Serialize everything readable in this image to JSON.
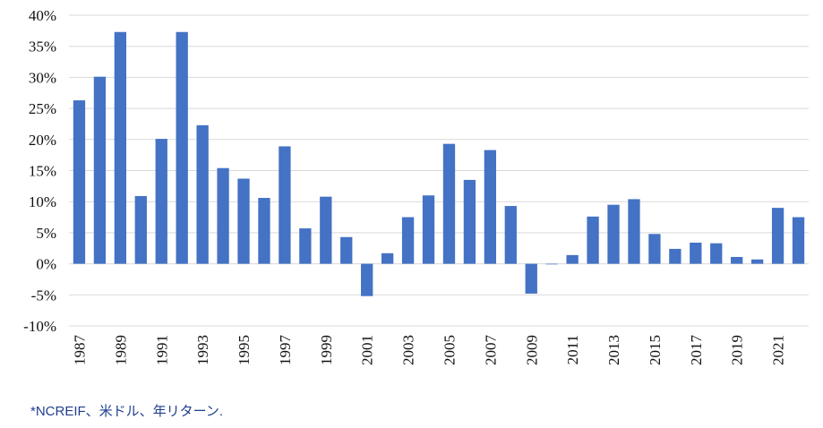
{
  "chart_data": {
    "type": "bar",
    "categories": [
      "1987",
      "1988",
      "1989",
      "1990",
      "1991",
      "1992",
      "1993",
      "1994",
      "1995",
      "1996",
      "1997",
      "1998",
      "1999",
      "2000",
      "2001",
      "2002",
      "2003",
      "2004",
      "2005",
      "2006",
      "2007",
      "2008",
      "2009",
      "2010",
      "2011",
      "2012",
      "2013",
      "2014",
      "2015",
      "2016",
      "2017",
      "2018",
      "2019",
      "2020",
      "2021",
      "2022"
    ],
    "x_tick_labels": [
      "1987",
      "1989",
      "1991",
      "1993",
      "1995",
      "1997",
      "1999",
      "2001",
      "2003",
      "2005",
      "2007",
      "2009",
      "2011",
      "2013",
      "2015",
      "2017",
      "2019",
      "2021"
    ],
    "values": [
      26.3,
      30.1,
      37.3,
      10.9,
      20.1,
      37.3,
      22.3,
      15.4,
      13.7,
      10.6,
      18.9,
      5.7,
      10.8,
      4.3,
      -5.2,
      1.7,
      7.5,
      11.0,
      19.3,
      13.5,
      18.3,
      9.3,
      -4.8,
      -0.1,
      1.4,
      7.6,
      9.5,
      10.4,
      4.8,
      2.4,
      3.4,
      3.3,
      1.1,
      0.7,
      9.0,
      7.5
    ],
    "y_tick_labels": [
      "40%",
      "35%",
      "30%",
      "25%",
      "20%",
      "15%",
      "10%",
      "5%",
      "0%",
      "-5%",
      "-10%"
    ],
    "ylim": [
      -10,
      40
    ],
    "grid": true,
    "bar_color": "#4472c4",
    "grid_color": "#d9d9d9",
    "title": "",
    "xlabel": "",
    "ylabel": ""
  },
  "footnote": "*NCREIF、米ドル、年リターン."
}
